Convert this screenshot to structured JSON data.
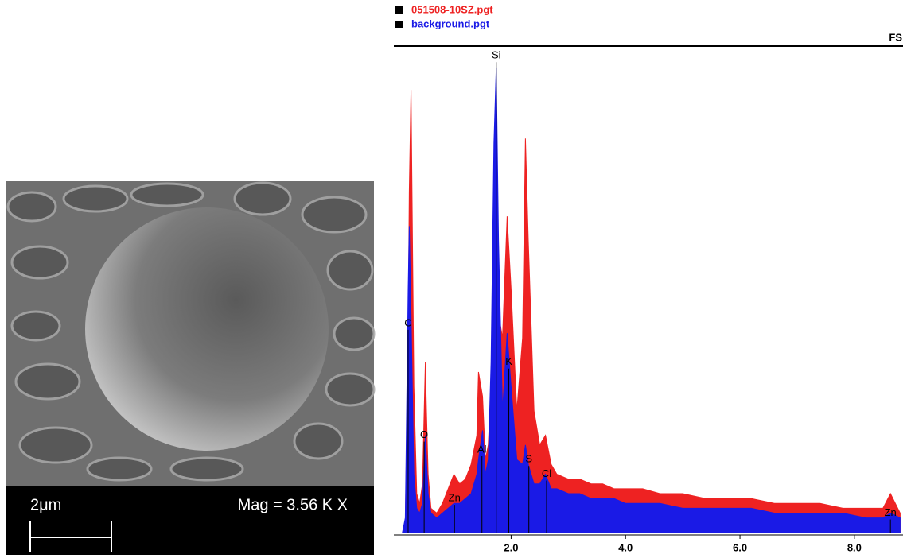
{
  "sem_image": {
    "scale_label": "2μm",
    "magnification": "Mag =  3.56 K X"
  },
  "chart_data": {
    "type": "spectrum",
    "corner_label": "FS",
    "x": [
      0.1,
      0.15,
      0.2,
      0.22,
      0.25,
      0.3,
      0.35,
      0.4,
      0.45,
      0.5,
      0.52,
      0.55,
      0.6,
      0.7,
      0.8,
      0.9,
      1.0,
      1.1,
      1.2,
      1.3,
      1.4,
      1.43,
      1.5,
      1.55,
      1.6,
      1.65,
      1.7,
      1.74,
      1.78,
      1.85,
      1.93,
      2.0,
      2.1,
      2.2,
      2.25,
      2.3,
      2.4,
      2.5,
      2.6,
      2.7,
      2.8,
      3.0,
      3.2,
      3.4,
      3.6,
      3.8,
      4.0,
      4.3,
      4.6,
      5.0,
      5.4,
      5.8,
      6.2,
      6.6,
      7.0,
      7.4,
      7.8,
      8.2,
      8.5,
      8.63,
      8.8
    ],
    "series": [
      {
        "name": "051508-10SZ.pgt",
        "color": "#ee2222",
        "values": [
          0,
          2,
          40,
          70,
          91,
          30,
          8,
          6,
          10,
          35,
          25,
          12,
          5,
          4,
          6,
          9,
          12,
          10,
          11,
          14,
          20,
          33,
          28,
          15,
          18,
          30,
          55,
          70,
          45,
          40,
          65,
          50,
          25,
          40,
          81,
          60,
          25,
          18,
          20,
          14,
          12,
          11,
          11,
          10,
          10,
          9,
          9,
          9,
          8,
          8,
          7,
          7,
          7,
          6,
          6,
          6,
          5,
          5,
          5,
          8,
          4
        ]
      },
      {
        "name": "background.pgt",
        "color": "#1a1ae6",
        "values": [
          0,
          3,
          50,
          63,
          45,
          12,
          5,
          4,
          6,
          20,
          15,
          8,
          4,
          3,
          4,
          5,
          6,
          6,
          7,
          8,
          12,
          15,
          21,
          12,
          15,
          35,
          80,
          95.6,
          60,
          25,
          41,
          30,
          15,
          14,
          18,
          14,
          10,
          10,
          12,
          9,
          9,
          8,
          8,
          7,
          7,
          7,
          6,
          6,
          6,
          5,
          5,
          5,
          5,
          4,
          4,
          4,
          4,
          3,
          3,
          4,
          3
        ]
      }
    ],
    "element_labels": [
      {
        "text": "Si",
        "x": 1.74,
        "y": 98
      },
      {
        "text": "C",
        "x": 0.2,
        "y": 43
      },
      {
        "text": "O",
        "x": 0.48,
        "y": 20
      },
      {
        "text": "Zn",
        "x": 1.01,
        "y": 7
      },
      {
        "text": "Al",
        "x": 1.49,
        "y": 17
      },
      {
        "text": "K",
        "x": 1.96,
        "y": 35
      },
      {
        "text": "S",
        "x": 2.31,
        "y": 15
      },
      {
        "text": "Cl",
        "x": 2.62,
        "y": 12
      },
      {
        "text": "Zn",
        "x": 8.63,
        "y": 4
      }
    ],
    "xlim": [
      -0.05,
      8.85
    ],
    "ylim": [
      0,
      100
    ],
    "xticks": [
      {
        "value": 2,
        "label": "2.0"
      },
      {
        "value": 4,
        "label": "4.0"
      },
      {
        "value": 6,
        "label": "6.0"
      },
      {
        "value": 8,
        "label": "8.0"
      }
    ]
  }
}
